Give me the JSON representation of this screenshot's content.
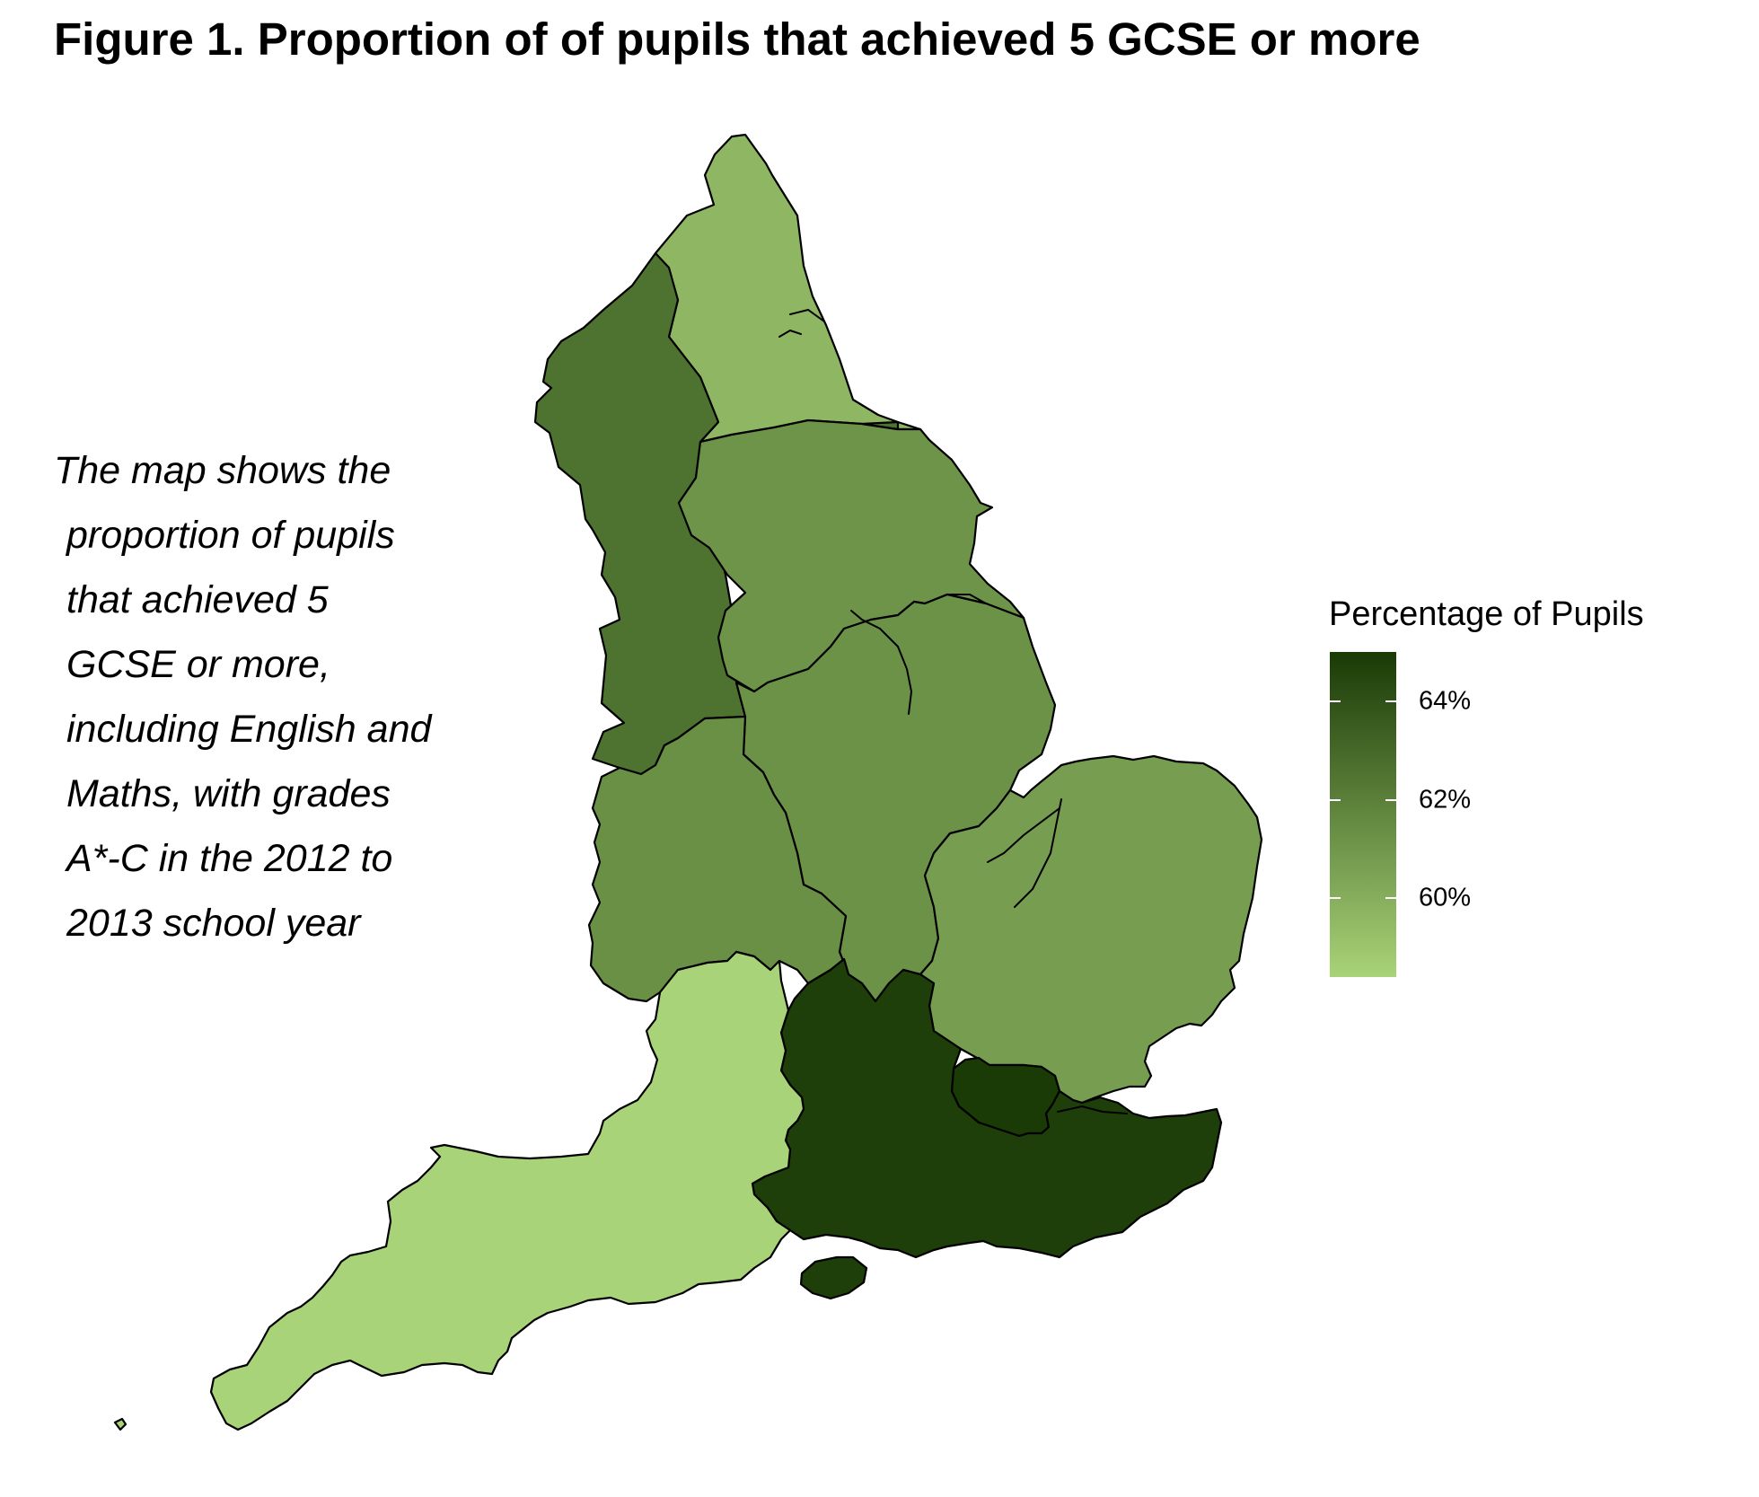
{
  "title": "Figure 1. Proportion of of pupils that achieved 5 GCSE or more",
  "description": [
    "The map shows the",
    "proportion of pupils",
    "that achieved 5",
    "GCSE or more,",
    "including English and",
    "Maths, with grades",
    "A*-C in the 2012 to",
    "2013 school year"
  ],
  "legend": {
    "title": "Percentage of Pupils",
    "labels": [
      "64%",
      "62%",
      "60%"
    ],
    "ticks": [
      64,
      62,
      60
    ],
    "range": [
      58.4,
      65.0
    ],
    "color_low": "#a9d378",
    "color_high": "#1a3a06"
  },
  "chart_data": {
    "type": "choropleth",
    "value_unit": "%",
    "regions": [
      {
        "key": "north-east",
        "value": 59.6
      },
      {
        "key": "north-west",
        "value": 62.6
      },
      {
        "key": "yorkshire-and-the-humber",
        "value": 61.1
      },
      {
        "key": "east-midlands",
        "value": 61.2
      },
      {
        "key": "west-midlands",
        "value": 61.3
      },
      {
        "key": "east-of-england",
        "value": 60.7
      },
      {
        "key": "london",
        "value": 65.0
      },
      {
        "key": "south-east",
        "value": 64.8
      },
      {
        "key": "south-west",
        "value": 58.4
      }
    ]
  }
}
